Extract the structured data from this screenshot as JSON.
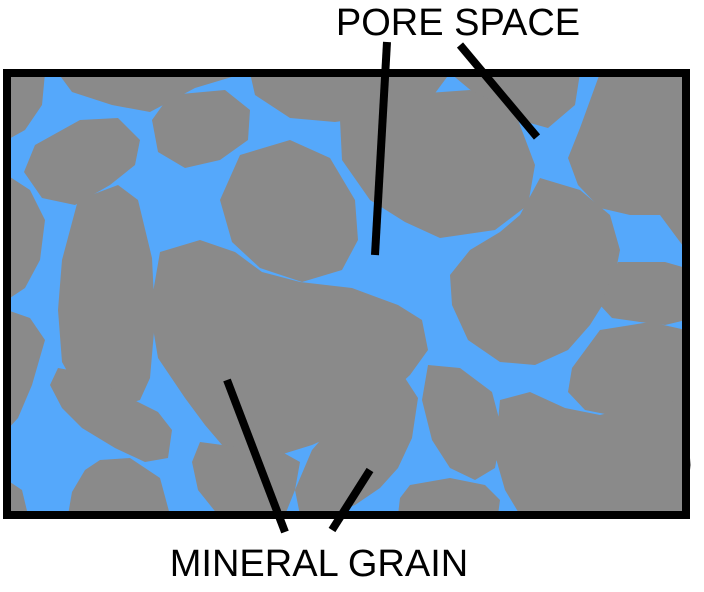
{
  "labels": {
    "pore_space": "PORE SPACE",
    "mineral_grain": "MINERAL GRAIN"
  },
  "colors": {
    "pore_water": "#55a8fb",
    "grain": "#8a8a8a",
    "frame": "#000000",
    "background": "#ffffff"
  }
}
